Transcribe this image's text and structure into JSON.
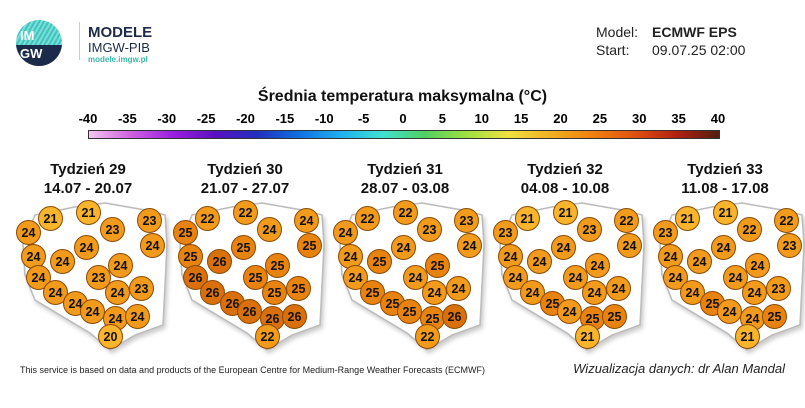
{
  "logo": {
    "text": "IMGW",
    "name": "MODELE",
    "org": "IMGW-PIB",
    "url": "modele.imgw.pl"
  },
  "model": {
    "label": "Model:",
    "value": "ECMWF EPS"
  },
  "start": {
    "label": "Start:",
    "value": "09.07.25 02:00"
  },
  "colorbar": {
    "title": "Średnia temperatura maksymalna (°C)",
    "ticks": [
      "-40",
      "-35",
      "-30",
      "-25",
      "-20",
      "-15",
      "-10",
      "-5",
      "0",
      "5",
      "10",
      "15",
      "20",
      "25",
      "30",
      "35",
      "40"
    ]
  },
  "weeks": [
    {
      "title": "Tydzień 29",
      "dates": "14.07 - 20.07",
      "values": [
        21,
        21,
        23,
        23,
        24,
        24,
        24,
        24,
        24,
        24,
        23,
        24,
        23,
        24,
        24,
        24,
        24,
        24,
        24,
        20
      ]
    },
    {
      "title": "Tydzień 30",
      "dates": "21.07 - 27.07",
      "values": [
        22,
        22,
        24,
        24,
        25,
        25,
        25,
        25,
        26,
        25,
        25,
        26,
        25,
        26,
        25,
        26,
        26,
        26,
        26,
        22
      ]
    },
    {
      "title": "Tydzień 31",
      "dates": "28.07 - 03.08",
      "values": [
        22,
        22,
        23,
        23,
        24,
        24,
        24,
        24,
        25,
        25,
        24,
        24,
        24,
        25,
        24,
        25,
        25,
        25,
        26,
        22
      ]
    },
    {
      "title": "Tydzień 32",
      "dates": "04.08 - 10.08",
      "values": [
        21,
        21,
        23,
        22,
        23,
        24,
        24,
        24,
        24,
        24,
        24,
        24,
        24,
        24,
        24,
        25,
        24,
        25,
        25,
        21
      ]
    },
    {
      "title": "Tydzień 33",
      "dates": "11.08 - 17.08",
      "values": [
        21,
        21,
        22,
        22,
        23,
        23,
        24,
        24,
        24,
        24,
        24,
        24,
        23,
        24,
        24,
        25,
        24,
        24,
        25,
        21
      ]
    }
  ],
  "colors": {
    "t20": "#f7b42c",
    "t22": "#f29a1c",
    "t25": "#e8830f",
    "t26": "#d9700c"
  },
  "footer": "This service is based on data and products of the European Centre for Medium-Range Weather Forecasts (ECMWF)",
  "author": "Wizualizacja danych: dr Alan Mandal"
}
